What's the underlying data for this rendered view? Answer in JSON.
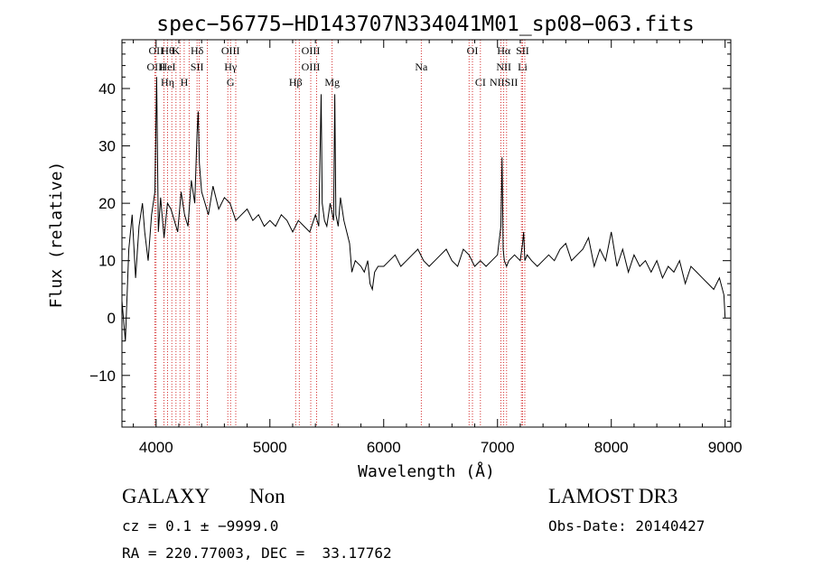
{
  "chart_data": {
    "type": "line",
    "title": "spec−56775−HD143707N334041M01_sp08−063.fits",
    "xlabel": "Wavelength (Å)",
    "ylabel": "Flux (relative)",
    "xlim": [
      3700,
      9050
    ],
    "ylim": [
      -19,
      48.5
    ],
    "xticks": [
      4000,
      5000,
      6000,
      7000,
      8000,
      9000
    ],
    "yticks": [
      -10,
      0,
      10,
      20,
      30,
      40
    ],
    "grid": false,
    "line_color": "#000000",
    "marker_color": "#cc0000",
    "series": [
      {
        "name": "flux",
        "x": [
          3700,
          3730,
          3760,
          3790,
          3820,
          3850,
          3880,
          3900,
          3930,
          3960,
          3990,
          4005,
          4020,
          4040,
          4070,
          4100,
          4130,
          4160,
          4190,
          4220,
          4250,
          4280,
          4310,
          4340,
          4360,
          4370,
          4380,
          4400,
          4430,
          4460,
          4500,
          4550,
          4600,
          4650,
          4700,
          4750,
          4800,
          4850,
          4900,
          4950,
          5000,
          5050,
          5100,
          5150,
          5200,
          5250,
          5300,
          5350,
          5400,
          5430,
          5450,
          5460,
          5480,
          5500,
          5530,
          5560,
          5570,
          5580,
          5600,
          5620,
          5650,
          5700,
          5720,
          5750,
          5800,
          5830,
          5860,
          5880,
          5900,
          5920,
          5950,
          6000,
          6050,
          6100,
          6150,
          6200,
          6250,
          6300,
          6350,
          6400,
          6450,
          6500,
          6550,
          6600,
          6650,
          6700,
          6750,
          6800,
          6850,
          6900,
          6950,
          7000,
          7030,
          7040,
          7050,
          7060,
          7080,
          7100,
          7150,
          7200,
          7220,
          7230,
          7240,
          7260,
          7300,
          7350,
          7400,
          7450,
          7500,
          7550,
          7600,
          7650,
          7700,
          7750,
          7800,
          7850,
          7900,
          7950,
          8000,
          8050,
          8100,
          8150,
          8200,
          8250,
          8300,
          8350,
          8400,
          8450,
          8500,
          8550,
          8600,
          8650,
          8700,
          8750,
          8800,
          8850,
          8900,
          8950,
          8990,
          9000
        ],
        "y": [
          3,
          -4,
          12,
          18,
          7,
          16,
          20,
          15,
          10,
          18,
          22,
          42,
          15,
          21,
          14,
          20,
          19,
          17,
          15,
          22,
          18,
          16,
          24,
          20,
          32,
          36,
          27,
          22,
          20,
          18,
          23,
          19,
          21,
          20,
          17,
          18,
          19,
          17,
          18,
          16,
          17,
          16,
          18,
          17,
          15,
          17,
          16,
          15,
          18,
          16,
          39,
          20,
          17,
          16,
          20,
          17,
          39,
          18,
          16,
          21,
          17,
          13,
          8,
          10,
          9,
          8,
          10,
          6,
          5,
          8,
          9,
          9,
          10,
          11,
          9,
          10,
          11,
          12,
          10,
          9,
          10,
          11,
          12,
          10,
          9,
          12,
          11,
          9,
          10,
          9,
          10,
          11,
          16,
          28,
          12,
          10,
          9,
          10,
          11,
          10,
          13,
          15,
          10,
          11,
          10,
          9,
          10,
          11,
          10,
          12,
          13,
          10,
          11,
          12,
          14,
          9,
          12,
          10,
          15,
          9,
          12,
          8,
          11,
          9,
          10,
          8,
          10,
          7,
          9,
          8,
          10,
          6,
          9,
          8,
          7,
          6,
          5,
          7,
          4,
          0
        ]
      }
    ],
    "lines": [
      {
        "wl": 4000,
        "rows": [
          "OII",
          "OIII"
        ]
      },
      {
        "wl": 4101,
        "rows": [
          "Hθ",
          "HeI",
          "Hη"
        ]
      },
      {
        "wl": 4175,
        "rows": [
          "K"
        ]
      },
      {
        "wl": 4247,
        "rows": [
          "",
          "",
          "H"
        ]
      },
      {
        "wl": 4360,
        "rows": [
          "Hδ",
          "SII"
        ]
      },
      {
        "wl": 4450,
        "rows": []
      },
      {
        "wl": 4654,
        "rows": [
          "OIII",
          "Hγ",
          "G"
        ]
      },
      {
        "wl": 5226,
        "rows": [
          "",
          "",
          "Hβ"
        ]
      },
      {
        "wl": 5359,
        "rows": [
          "OIII",
          "OIII"
        ]
      },
      {
        "wl": 5547,
        "rows": [
          "",
          "",
          "Mg"
        ]
      },
      {
        "wl": 6330,
        "rows": [
          "",
          "Na"
        ]
      },
      {
        "wl": 6780,
        "rows": [
          "OI"
        ]
      },
      {
        "wl": 6850,
        "rows": [
          "",
          "",
          "CI"
        ]
      },
      {
        "wl": 7055,
        "rows": [
          "Hα",
          "NII",
          "NIISII"
        ]
      },
      {
        "wl": 7220,
        "rows": [
          "SII",
          "Li"
        ]
      }
    ],
    "extra_line_positions": [
      3990,
      4070,
      4138,
      4210,
      4290,
      4380,
      4630,
      4700,
      5258,
      5410,
      6750,
      7030,
      7080,
      7210,
      7240
    ]
  },
  "info": {
    "object_class": "GALAXY",
    "subclass": "Non",
    "cz": "cz = 0.1 ± −9999.0",
    "radec": "RA = 220.77003, DEC =  33.17762",
    "survey": "LAMOST DR3",
    "obs_date": "Obs-Date: 20140427"
  }
}
